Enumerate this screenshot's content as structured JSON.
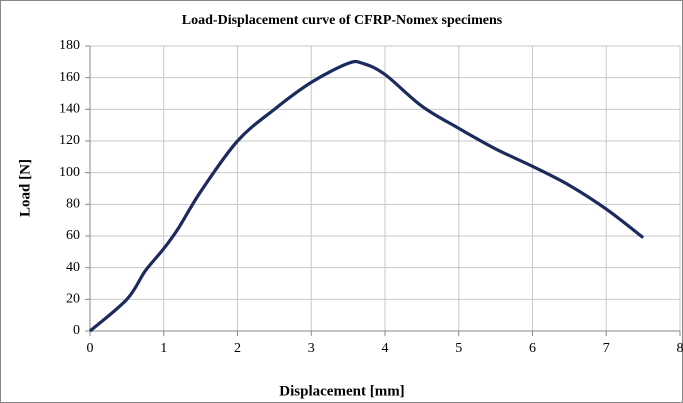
{
  "chart_data": {
    "type": "line",
    "title": "Load-Displacement curve of CFRP-Nomex specimens",
    "x_label": "Displacement [mm]",
    "y_label": "Load [N]",
    "x": [
      0,
      0.5,
      0.75,
      1,
      1.2,
      1.5,
      2,
      2.5,
      3,
      3.5,
      3.7,
      4,
      4.5,
      5,
      5.5,
      6,
      6.5,
      7,
      7.5
    ],
    "series": [
      {
        "name": "CFRP-Nomex",
        "color": "#1c2a5e",
        "values": [
          0,
          20,
          38,
          52,
          65,
          88,
          120,
          140,
          157,
          169,
          169,
          162,
          142,
          128,
          115,
          104,
          92,
          77,
          59
        ]
      }
    ],
    "xlim": [
      0,
      8
    ],
    "xticks": [
      0,
      1,
      2,
      3,
      4,
      5,
      6,
      7,
      8
    ],
    "ylim": [
      0,
      180
    ],
    "yticks": [
      0,
      20,
      40,
      60,
      80,
      100,
      120,
      140,
      160,
      180
    ],
    "grid": true
  }
}
